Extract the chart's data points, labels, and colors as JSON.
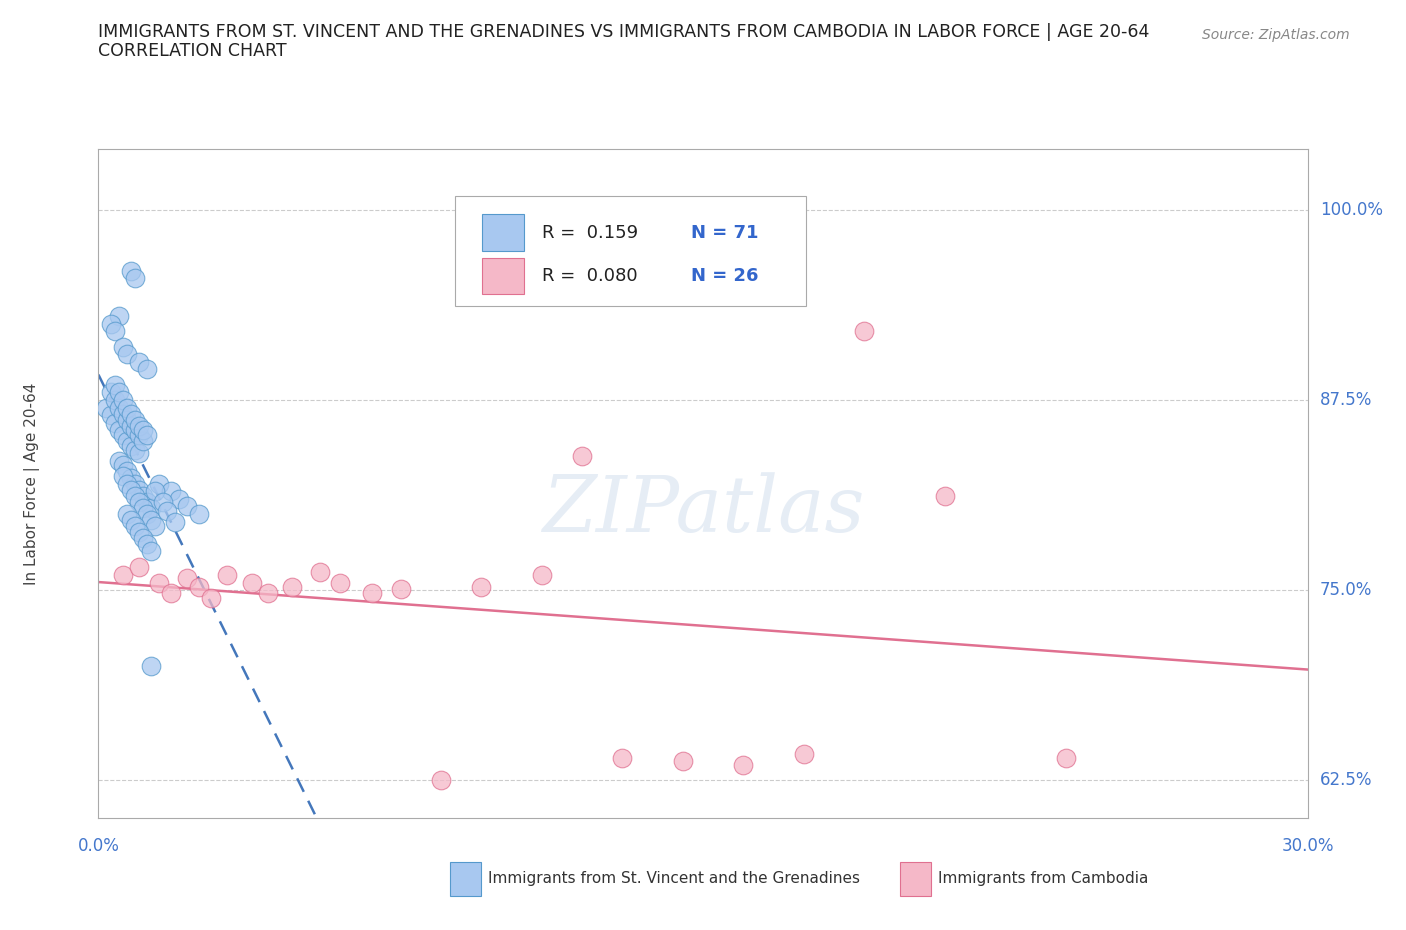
{
  "title1": "IMMIGRANTS FROM ST. VINCENT AND THE GRENADINES VS IMMIGRANTS FROM CAMBODIA IN LABOR FORCE | AGE 20-64",
  "title2": "CORRELATION CHART",
  "source": "Source: ZipAtlas.com",
  "xmin": 0.0,
  "xmax": 0.3,
  "ymin": 0.6,
  "ymax": 1.04,
  "ytick_positions": [
    0.625,
    0.75,
    0.875,
    1.0
  ],
  "ytick_labels": [
    "62.5%",
    "75.0%",
    "87.5%",
    "100.0%"
  ],
  "xtick_positions": [
    0.0,
    0.3
  ],
  "xtick_labels": [
    "0.0%",
    "30.0%"
  ],
  "color_sv": "#a8c8f0",
  "color_sv_edge": "#5599cc",
  "color_sv_line": "#4477bb",
  "color_kh": "#f5b8c8",
  "color_kh_edge": "#e07090",
  "color_kh_line": "#e07090",
  "ylabel_label": "In Labor Force | Age 20-64",
  "legend_r1": "R =  0.159",
  "legend_n1": "N = 71",
  "legend_r2": "R =  0.080",
  "legend_n2": "N = 26",
  "watermark": "ZIPatlas",
  "sv_x": [
    0.002,
    0.003,
    0.004,
    0.005,
    0.006,
    0.007,
    0.008,
    0.009,
    0.01,
    0.003,
    0.004,
    0.005,
    0.006,
    0.007,
    0.008,
    0.009,
    0.01,
    0.011,
    0.004,
    0.005,
    0.006,
    0.007,
    0.008,
    0.009,
    0.01,
    0.011,
    0.012,
    0.005,
    0.006,
    0.007,
    0.008,
    0.009,
    0.01,
    0.011,
    0.012,
    0.013,
    0.006,
    0.007,
    0.008,
    0.009,
    0.01,
    0.011,
    0.012,
    0.013,
    0.014,
    0.007,
    0.008,
    0.009,
    0.01,
    0.011,
    0.012,
    0.013,
    0.015,
    0.018,
    0.02,
    0.022,
    0.025,
    0.014,
    0.016,
    0.017,
    0.019,
    0.008,
    0.009,
    0.005,
    0.003,
    0.004,
    0.006,
    0.007,
    0.01,
    0.012,
    0.013
  ],
  "sv_y": [
    0.87,
    0.865,
    0.86,
    0.855,
    0.852,
    0.848,
    0.845,
    0.842,
    0.84,
    0.88,
    0.875,
    0.87,
    0.866,
    0.862,
    0.858,
    0.855,
    0.852,
    0.848,
    0.885,
    0.88,
    0.875,
    0.87,
    0.866,
    0.862,
    0.858,
    0.855,
    0.852,
    0.835,
    0.832,
    0.828,
    0.824,
    0.82,
    0.816,
    0.812,
    0.808,
    0.804,
    0.825,
    0.82,
    0.816,
    0.812,
    0.808,
    0.804,
    0.8,
    0.796,
    0.792,
    0.8,
    0.796,
    0.792,
    0.788,
    0.784,
    0.78,
    0.776,
    0.82,
    0.815,
    0.81,
    0.805,
    0.8,
    0.815,
    0.808,
    0.802,
    0.795,
    0.96,
    0.955,
    0.93,
    0.925,
    0.92,
    0.91,
    0.905,
    0.9,
    0.895,
    0.7
  ],
  "kh_x": [
    0.006,
    0.01,
    0.015,
    0.018,
    0.022,
    0.025,
    0.028,
    0.032,
    0.038,
    0.042,
    0.048,
    0.055,
    0.06,
    0.068,
    0.075,
    0.085,
    0.095,
    0.11,
    0.13,
    0.145,
    0.16,
    0.175,
    0.19,
    0.21,
    0.24,
    0.12
  ],
  "kh_y": [
    0.76,
    0.765,
    0.755,
    0.748,
    0.758,
    0.752,
    0.745,
    0.76,
    0.755,
    0.748,
    0.752,
    0.762,
    0.755,
    0.748,
    0.751,
    0.625,
    0.752,
    0.76,
    0.64,
    0.638,
    0.635,
    0.642,
    0.92,
    0.812,
    0.64,
    0.838
  ]
}
